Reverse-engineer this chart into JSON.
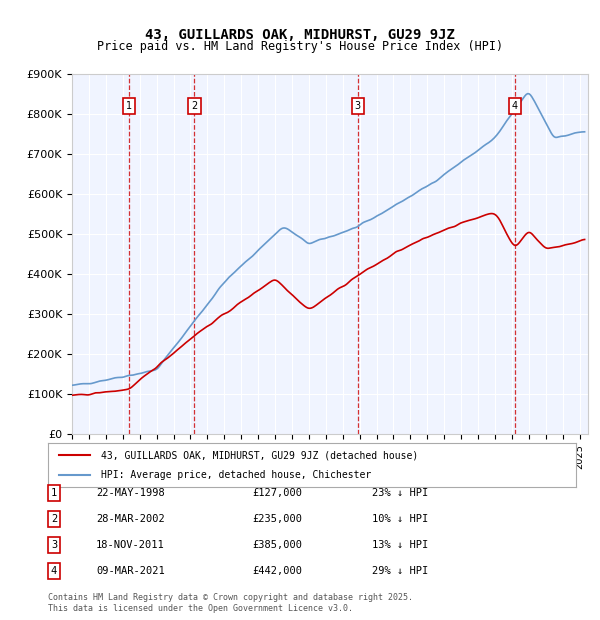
{
  "title": "43, GUILLARDS OAK, MIDHURST, GU29 9JZ",
  "subtitle": "Price paid vs. HM Land Registry's House Price Index (HPI)",
  "legend_line1": "43, GUILLARDS OAK, MIDHURST, GU29 9JZ (detached house)",
  "legend_line2": "HPI: Average price, detached house, Chichester",
  "footer": "Contains HM Land Registry data © Crown copyright and database right 2025.\nThis data is licensed under the Open Government Licence v3.0.",
  "transactions": [
    {
      "num": "1",
      "date": "22-MAY-1998",
      "price": "£127,000",
      "hpi": "23% ↓ HPI"
    },
    {
      "num": "2",
      "date": "28-MAR-2002",
      "price": "£235,000",
      "hpi": "10% ↓ HPI"
    },
    {
      "num": "3",
      "date": "18-NOV-2011",
      "price": "£385,000",
      "hpi": "13% ↓ HPI"
    },
    {
      "num": "4",
      "date": "09-MAR-2021",
      "price": "£442,000",
      "hpi": "29% ↓ HPI"
    }
  ],
  "sale_years": [
    1998.39,
    2002.24,
    2011.89,
    2021.19
  ],
  "sale_prices": [
    127000,
    235000,
    385000,
    442000
  ],
  "price_color": "#cc0000",
  "hpi_color": "#6699cc",
  "background_color": "#f0f4ff",
  "plot_bg": "#f0f4ff",
  "ylim": [
    0,
    900000
  ],
  "xlim_start": 1995,
  "xlim_end": 2025.5
}
